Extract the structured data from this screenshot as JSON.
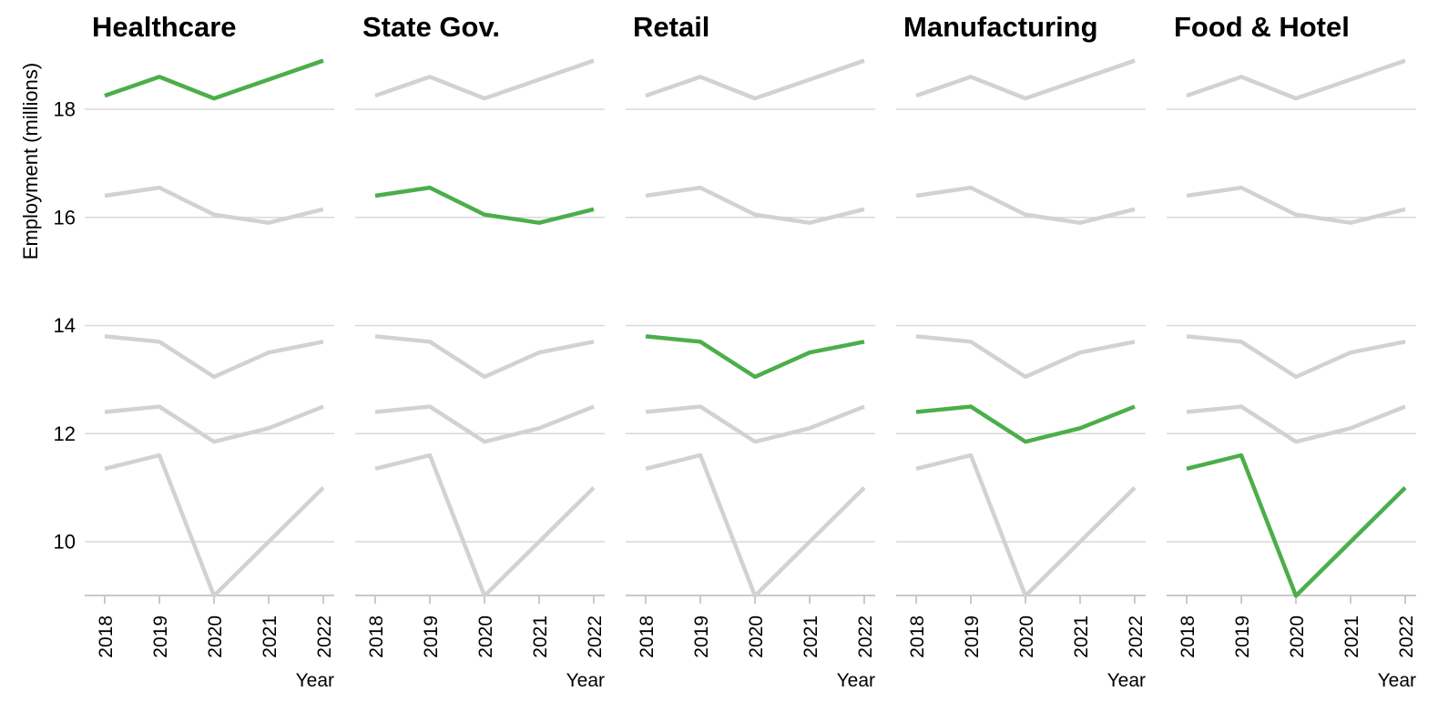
{
  "chart_data": {
    "type": "line",
    "layout": "small-multiples",
    "title": "",
    "xlabel": "Year",
    "ylabel": "Employment (millions)",
    "x": [
      "2018",
      "2019",
      "2020",
      "2021",
      "2022"
    ],
    "yticks": [
      18,
      16,
      14,
      12,
      10
    ],
    "ylim": [
      9.0,
      19.05
    ],
    "grid": "horizontal-only",
    "legend_position": "none",
    "panels": [
      "Healthcare",
      "State Gov.",
      "Retail",
      "Manufacturing",
      "Food & Hotel"
    ],
    "highlight_rule": "each panel shows all five series in gray and highlights its own series in green",
    "series": [
      {
        "name": "Healthcare",
        "values": [
          18.25,
          18.6,
          18.2,
          18.55,
          18.9
        ]
      },
      {
        "name": "State Gov.",
        "values": [
          16.4,
          16.55,
          16.05,
          15.9,
          16.15
        ]
      },
      {
        "name": "Retail",
        "values": [
          13.8,
          13.7,
          13.05,
          13.5,
          13.7
        ]
      },
      {
        "name": "Manufacturing",
        "values": [
          12.4,
          12.5,
          11.85,
          12.1,
          12.5
        ]
      },
      {
        "name": "Food & Hotel",
        "values": [
          11.35,
          11.6,
          9.0,
          10.0,
          11.0
        ]
      }
    ],
    "colors": {
      "highlight": "#4cae4a",
      "muted": "#d2d2d2",
      "gridline": "#d9d9d9",
      "axis": "#c9c9c9",
      "text": "#000000"
    }
  }
}
